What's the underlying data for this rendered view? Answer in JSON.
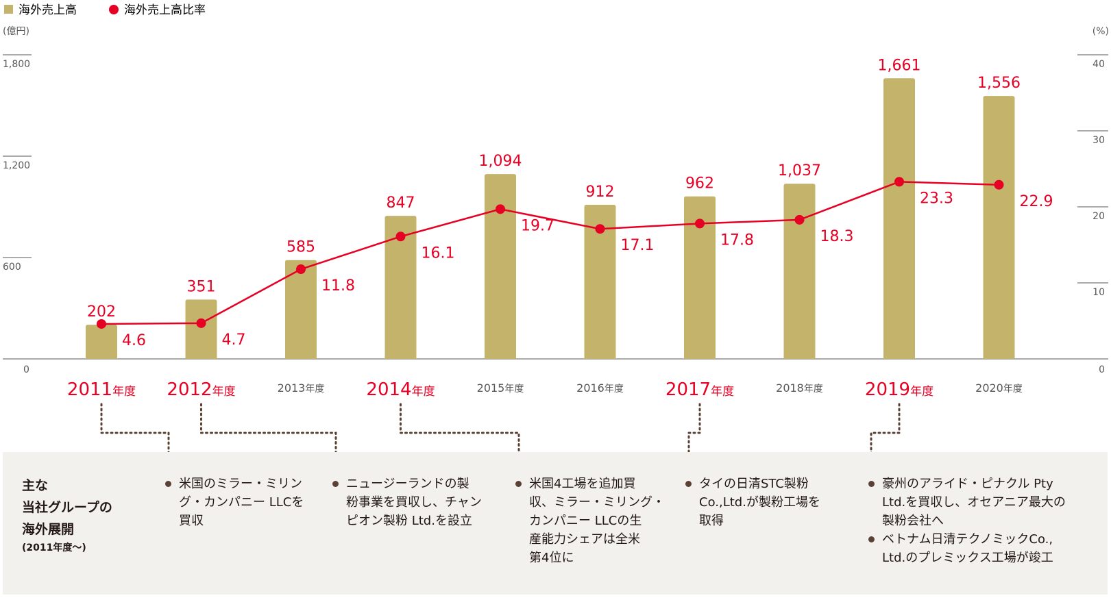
{
  "legend": {
    "bars": "海外売上高",
    "line": "海外売上高比率"
  },
  "axis": {
    "left_unit": "(億円)",
    "right_unit": "(%)"
  },
  "events_title": {
    "line1": "主な",
    "line2": "当社グループの",
    "line3": "海外展開",
    "sub": "(2011年度〜)"
  },
  "events": [
    {
      "year": "2011",
      "lines": [
        "米国のミラー・ミリン",
        "グ・カンパニー LLCを",
        "買収"
      ]
    },
    {
      "year": "2012",
      "lines": [
        "ニュージーランドの製",
        "粉事業を買収し、チャン",
        "ピオン製粉 Ltd.を設立"
      ]
    },
    {
      "year": "2014",
      "lines": [
        "米国4工場を追加買",
        "収、ミラー・ミリング・",
        "カンパニー LLCの生",
        "産能力シェアは全米",
        "第4位に"
      ]
    },
    {
      "year": "2017",
      "lines": [
        "タイの日清STC製粉",
        "Co.,Ltd.が製粉工場を",
        "取得"
      ]
    },
    {
      "year": "2019",
      "items": [
        [
          "豪州のアライド・ピナクル Pty",
          "Ltd.を買収し、オセアニア最大の",
          "製粉会社へ"
        ],
        [
          "ベトナム日清テクノミックCo.,",
          "Ltd.のプレミックス工場が竣工"
        ]
      ]
    }
  ],
  "colors": {
    "bar": "#c4b36b",
    "line": "#e60024",
    "highlight_text": "#e60024",
    "normal_text": "#595757",
    "dots": "#5b4034",
    "band": "#f2f1ed"
  },
  "chart_data": {
    "type": "bar+line",
    "categories": [
      "2011",
      "2012",
      "2013",
      "2014",
      "2015",
      "2016",
      "2017",
      "2018",
      "2019",
      "2020"
    ],
    "category_suffix": "年度",
    "highlighted_categories": [
      "2011",
      "2012",
      "2014",
      "2017",
      "2019"
    ],
    "series": [
      {
        "name": "海外売上高",
        "type": "bar",
        "axis": "left",
        "values": [
          202,
          351,
          585,
          847,
          1094,
          912,
          962,
          1037,
          1661,
          1556
        ],
        "labels": [
          "202",
          "351",
          "585",
          "847",
          "1,094",
          "912",
          "962",
          "1,037",
          "1,661",
          "1,556"
        ]
      },
      {
        "name": "海外売上高比率",
        "type": "line",
        "axis": "right",
        "values": [
          4.6,
          4.7,
          11.8,
          16.1,
          19.7,
          17.1,
          17.8,
          18.3,
          23.3,
          22.9
        ],
        "labels": [
          "4.6",
          "4.7",
          "11.8",
          "16.1",
          "19.7",
          "17.1",
          "17.8",
          "18.3",
          "23.3",
          "22.9"
        ]
      }
    ],
    "left_axis": {
      "unit": "(億円)",
      "range": [
        0,
        1800
      ],
      "ticks": [
        0,
        600,
        1200,
        1800
      ],
      "tick_labels": [
        "0",
        "600",
        "1,200",
        "1,800"
      ]
    },
    "right_axis": {
      "unit": "(%)",
      "range": [
        0,
        40
      ],
      "ticks": [
        0,
        10,
        20,
        30,
        40
      ],
      "tick_labels": [
        "0",
        "10",
        "20",
        "30",
        "40"
      ]
    },
    "legend_position": "top-left",
    "grid": false
  }
}
